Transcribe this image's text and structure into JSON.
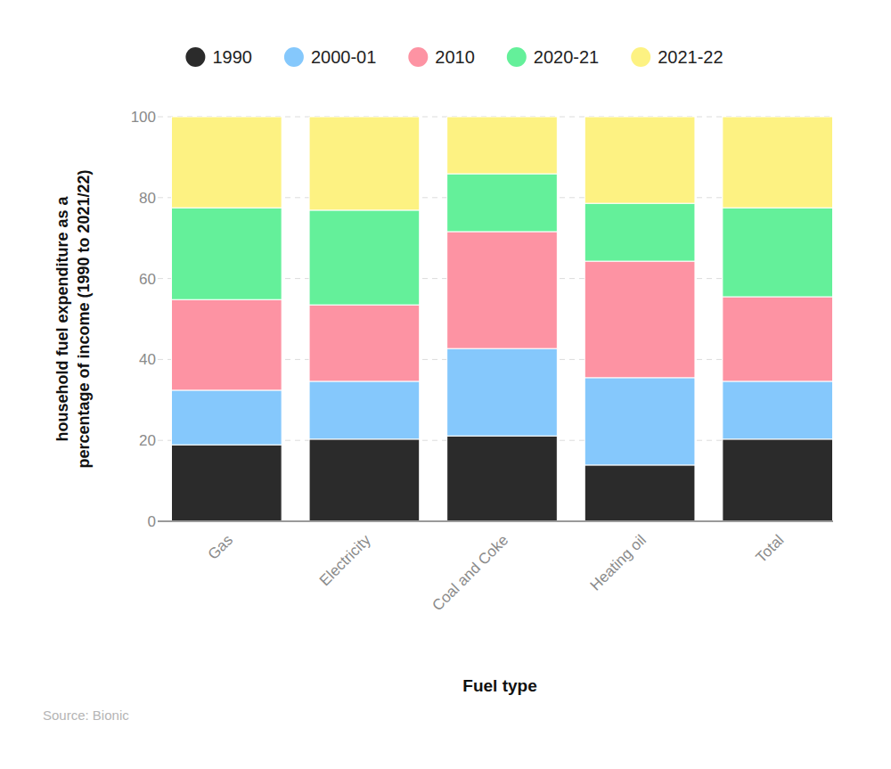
{
  "chart_data": {
    "type": "bar",
    "stacked": true,
    "categories": [
      "Gas",
      "Electricity",
      "Coal and Coke",
      "Heating oil",
      "Total"
    ],
    "series": [
      {
        "name": "1990",
        "color": "#2b2b2b",
        "values": [
          18.9,
          20.3,
          21.1,
          13.9,
          20.3
        ]
      },
      {
        "name": "2000-01",
        "color": "#85c8fc",
        "values": [
          13.5,
          14.3,
          21.6,
          21.6,
          14.3
        ]
      },
      {
        "name": "2010",
        "color": "#fd93a3",
        "values": [
          22.4,
          18.9,
          28.9,
          28.8,
          20.9
        ]
      },
      {
        "name": "2020-21",
        "color": "#64f09a",
        "values": [
          22.7,
          23.4,
          14.3,
          14.3,
          22.0
        ]
      },
      {
        "name": "2021-22",
        "color": "#fdf282",
        "values": [
          22.5,
          23.1,
          14.1,
          21.4,
          22.5
        ]
      }
    ],
    "x_label": "Fuel type",
    "y_label": "household fuel expenditure as a percentage of income (1990 to 2021/22)",
    "source": "Source: Bionic",
    "ylim": [
      0,
      100
    ],
    "yticks": [
      0,
      20,
      40,
      60,
      80,
      100
    ],
    "grid": true,
    "legend": "top"
  }
}
